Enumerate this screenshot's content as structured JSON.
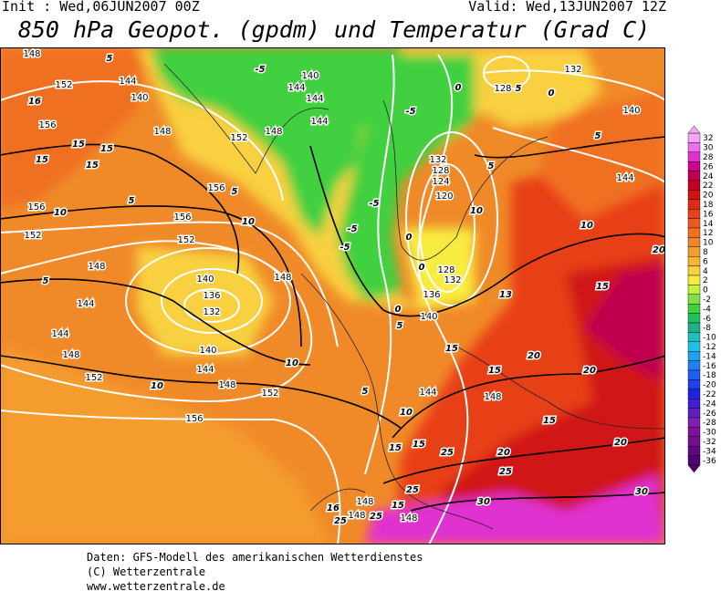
{
  "header": {
    "init": "Init : Wed,06JUN2007 00Z",
    "valid": "Valid: Wed,13JUN2007 12Z",
    "title": "850 hPa Geopot. (gpdm) und Temperatur (Grad C)"
  },
  "map": {
    "geopotential_labels": [
      148,
      144,
      140,
      152,
      156,
      148,
      152,
      148,
      144,
      140,
      144,
      144,
      156,
      156,
      152,
      156,
      152,
      148,
      148,
      144,
      140,
      136,
      132,
      144,
      148,
      140,
      144,
      152,
      148,
      152,
      156,
      144,
      148,
      140,
      136,
      132,
      128,
      120,
      124,
      128,
      132,
      128,
      132,
      140,
      144,
      148,
      148,
      148
    ],
    "temperature_labels": [
      5,
      16,
      15,
      15,
      15,
      15,
      10,
      5,
      5,
      10,
      5,
      10,
      10,
      5,
      10,
      5,
      0,
      0,
      0,
      -5,
      -5,
      -5,
      -5,
      -5,
      0,
      0,
      5,
      5,
      5,
      10,
      10,
      13,
      15,
      15,
      20,
      15,
      20,
      20,
      15,
      20,
      25,
      25,
      20,
      30,
      30,
      25,
      15,
      15,
      15,
      16,
      25,
      25
    ]
  },
  "legend": {
    "ticks": [
      32,
      30,
      28,
      26,
      24,
      22,
      20,
      18,
      16,
      14,
      12,
      10,
      8,
      6,
      4,
      2,
      0,
      -2,
      -4,
      -6,
      -8,
      -10,
      -12,
      -14,
      -16,
      -18,
      -20,
      -22,
      -24,
      -26,
      -28,
      -30,
      -32,
      -34,
      -36
    ],
    "colors": [
      "#f4a8f4",
      "#ec70ec",
      "#e030d0",
      "#d00090",
      "#c00050",
      "#c40028",
      "#d01414",
      "#e02a12",
      "#e84018",
      "#ee5a1e",
      "#f07020",
      "#f08628",
      "#f49c2e",
      "#f8b434",
      "#f8d040",
      "#f8ec40",
      "#c4f040",
      "#80e040",
      "#40d040",
      "#20c060",
      "#20b088",
      "#20c0c0",
      "#20c0e8",
      "#20a0f0",
      "#2080f0",
      "#2060f0",
      "#2040f0",
      "#2020e0",
      "#4020d0",
      "#6020c0",
      "#8020b0",
      "#8010a0",
      "#701090",
      "#600880",
      "#500070"
    ]
  },
  "footer": {
    "source": "Daten: GFS-Modell des amerikanischen Wetterdienstes",
    "copyright": "(C) Wetterzentrale",
    "url": "www.wetterzentrale.de"
  }
}
